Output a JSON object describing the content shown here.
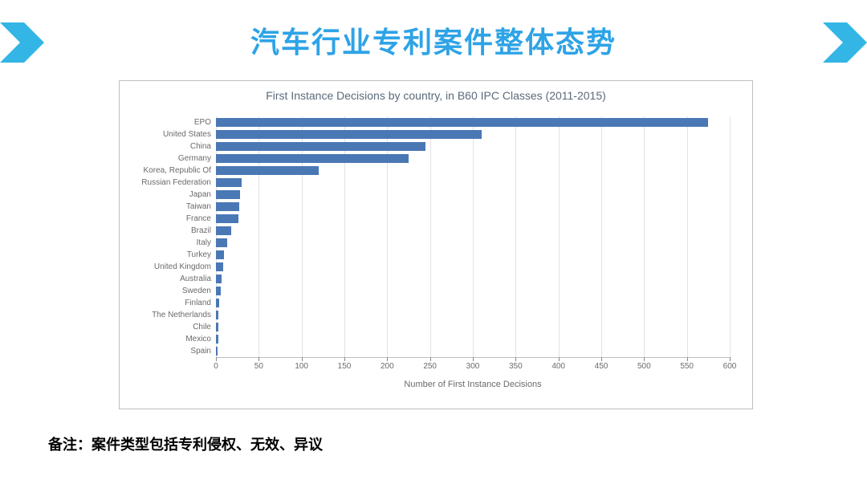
{
  "slide": {
    "title": "汽车行业专利案件整体态势",
    "title_color": "#2ea3e6",
    "title_fontsize": 36,
    "arrow_color": "#33b5e5",
    "footnote": "备注：案件类型包括专利侵权、无效、异议",
    "footnote_fontsize": 18
  },
  "chart": {
    "type": "horizontal_bar",
    "title": "First Instance Decisions by country, in B60 IPC Classes (2011-2015)",
    "title_fontsize": 14,
    "xlabel": "Number of First Instance Decisions",
    "label_fontsize": 11,
    "tick_fontsize": 10,
    "xlim": [
      0,
      600
    ],
    "xtick_step": 50,
    "bar_color": "#4a78b5",
    "grid_color": "#e2e2e2",
    "border_color": "#bfbfbf",
    "background_color": "#ffffff",
    "categories": [
      "EPO",
      "United States",
      "China",
      "Germany",
      "Korea, Republic Of",
      "Russian Federation",
      "Japan",
      "Taiwan",
      "France",
      "Brazil",
      "Italy",
      "Turkey",
      "United Kingdom",
      "Australia",
      "Sweden",
      "Finland",
      "The Netherlands",
      "Chile",
      "Mexico",
      "Spain"
    ],
    "values": [
      575,
      310,
      245,
      225,
      120,
      30,
      28,
      27,
      26,
      18,
      13,
      9,
      8,
      7,
      6,
      4,
      3,
      3,
      3,
      2
    ],
    "bar_height_ratio": 0.7
  }
}
